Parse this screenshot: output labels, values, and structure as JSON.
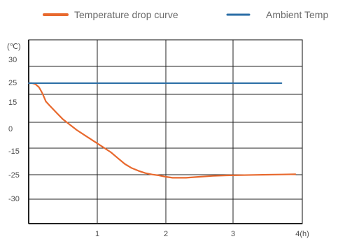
{
  "chart_data": {
    "type": "line",
    "title": "",
    "ylabel": "(℃)",
    "xlabel": "",
    "x_unit": "4(h)",
    "grid": true,
    "legend_position": "top",
    "y_tick_labels": [
      "30",
      "25",
      "15",
      "0",
      "-15",
      "-25",
      "-30"
    ],
    "x_tick_labels": [
      "1",
      "2",
      "3"
    ],
    "series": [
      {
        "name": "Temperature drop curve",
        "color": "#e8692e",
        "x": [
          0,
          0.05,
          0.1,
          0.15,
          0.2,
          0.25,
          0.3,
          0.4,
          0.5,
          0.6,
          0.7,
          0.8,
          0.9,
          1.0,
          1.1,
          1.2,
          1.3,
          1.4,
          1.5,
          1.6,
          1.7,
          1.8,
          1.9,
          2.0,
          2.1,
          2.2,
          2.3,
          2.5,
          2.7,
          2.9,
          3.1,
          3.3,
          3.5,
          3.7,
          3.9
        ],
        "y": [
          25,
          25,
          24.5,
          23,
          20,
          16,
          14,
          10,
          6,
          3,
          0,
          -3,
          -6,
          -9,
          -12,
          -15,
          -17.5,
          -20,
          -21.8,
          -23,
          -24,
          -24.6,
          -25,
          -25.3,
          -25.5,
          -25.5,
          -25.5,
          -25.3,
          -25.1,
          -25,
          -24.9,
          -24.8,
          -24.7,
          -24.6,
          -24.5
        ]
      },
      {
        "name": "Ambient Temp",
        "color": "#2b6ea6",
        "x": [
          0,
          3.7
        ],
        "y": [
          25,
          25
        ]
      }
    ]
  }
}
